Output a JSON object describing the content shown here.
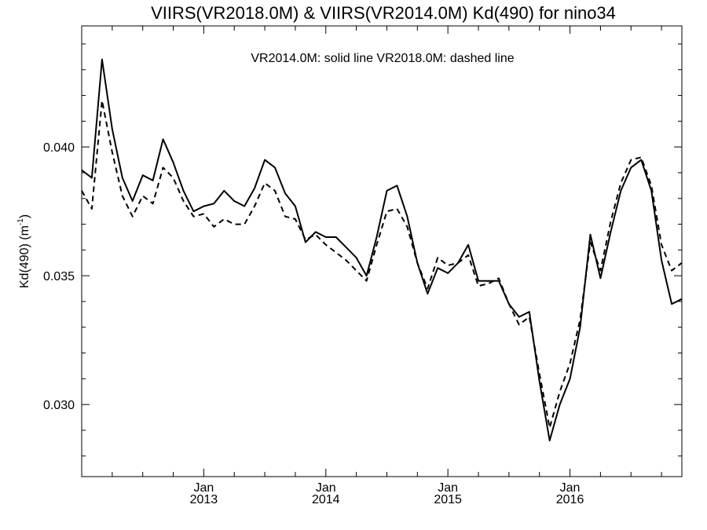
{
  "chart_data": {
    "type": "line",
    "title": "VIIRS(VR2018.0M) & VIIRS(VR2014.0M)  Kd(490) for nino34",
    "annotation": "VR2014.0M: solid line   VR2018.0M: dashed line",
    "ylabel": "Kd(490) (m",
    "ylabel_sup": "-1",
    "ylabel_end": ")",
    "xlim": [
      "2012-01",
      "2016-12"
    ],
    "ylim": [
      0.0272,
      0.0447
    ],
    "yticks": [
      {
        "value": 0.03,
        "label": "0.030"
      },
      {
        "value": 0.035,
        "label": "0.035"
      },
      {
        "value": 0.04,
        "label": "0.040"
      }
    ],
    "xticks": [
      {
        "date": "2013-01",
        "month": "Jan",
        "year": "2013"
      },
      {
        "date": "2014-01",
        "month": "Jan",
        "year": "2014"
      },
      {
        "date": "2015-01",
        "month": "Jan",
        "year": "2015"
      },
      {
        "date": "2016-01",
        "month": "Jan",
        "year": "2016"
      }
    ],
    "grid": false,
    "series": [
      {
        "style": "solid",
        "x": [
          "2012-01",
          "2012-02",
          "2012-03",
          "2012-04",
          "2012-05",
          "2012-06",
          "2012-07",
          "2012-08",
          "2012-09",
          "2012-10",
          "2012-11",
          "2012-12",
          "2013-01",
          "2013-02",
          "2013-03",
          "2013-04",
          "2013-05",
          "2013-06",
          "2013-07",
          "2013-08",
          "2013-09",
          "2013-10",
          "2013-11",
          "2013-12",
          "2014-01",
          "2014-02",
          "2014-03",
          "2014-04",
          "2014-05",
          "2014-06",
          "2014-07",
          "2014-08",
          "2014-09",
          "2014-10",
          "2014-11",
          "2014-12",
          "2015-01",
          "2015-02",
          "2015-03",
          "2015-04",
          "2015-05",
          "2015-06",
          "2015-07",
          "2015-08",
          "2015-09",
          "2015-10",
          "2015-11",
          "2015-12",
          "2016-01",
          "2016-02",
          "2016-03",
          "2016-04",
          "2016-05",
          "2016-06",
          "2016-07",
          "2016-08",
          "2016-09",
          "2016-10",
          "2016-11",
          "2016-12"
        ],
        "values": [
          0.0391,
          0.0388,
          0.0434,
          0.0407,
          0.0388,
          0.0379,
          0.0389,
          0.0387,
          0.0403,
          0.0394,
          0.0383,
          0.0375,
          0.0377,
          0.0378,
          0.0383,
          0.0379,
          0.0377,
          0.0384,
          0.0395,
          0.0392,
          0.0382,
          0.0377,
          0.0363,
          0.0367,
          0.0365,
          0.0365,
          0.0361,
          0.0357,
          0.035,
          0.0365,
          0.0383,
          0.0385,
          0.0373,
          0.0355,
          0.0343,
          0.0353,
          0.0351,
          0.0355,
          0.0362,
          0.0348,
          0.0348,
          0.0348,
          0.0339,
          0.0334,
          0.0336,
          0.0309,
          0.0286,
          0.03,
          0.031,
          0.033,
          0.0366,
          0.0349,
          0.0367,
          0.0383,
          0.0392,
          0.0395,
          0.0383,
          0.0356,
          0.0339,
          0.0341
        ]
      },
      {
        "style": "dashed",
        "x": [
          "2012-01",
          "2012-02",
          "2012-03",
          "2012-04",
          "2012-05",
          "2012-06",
          "2012-07",
          "2012-08",
          "2012-09",
          "2012-10",
          "2012-11",
          "2012-12",
          "2013-01",
          "2013-02",
          "2013-03",
          "2013-04",
          "2013-05",
          "2013-06",
          "2013-07",
          "2013-08",
          "2013-09",
          "2013-10",
          "2013-11",
          "2013-12",
          "2014-01",
          "2014-02",
          "2014-03",
          "2014-04",
          "2014-05",
          "2014-06",
          "2014-07",
          "2014-08",
          "2014-09",
          "2014-10",
          "2014-11",
          "2014-12",
          "2015-01",
          "2015-02",
          "2015-03",
          "2015-04",
          "2015-05",
          "2015-06",
          "2015-07",
          "2015-08",
          "2015-09",
          "2015-10",
          "2015-11",
          "2015-12",
          "2016-01",
          "2016-02",
          "2016-03",
          "2016-04",
          "2016-05",
          "2016-06",
          "2016-07",
          "2016-08",
          "2016-09",
          "2016-10",
          "2016-11",
          "2016-12"
        ],
        "values": [
          0.0383,
          0.0376,
          0.0418,
          0.0398,
          0.0381,
          0.0373,
          0.0381,
          0.0378,
          0.0392,
          0.0388,
          0.0379,
          0.0373,
          0.0374,
          0.0369,
          0.0372,
          0.037,
          0.037,
          0.0377,
          0.0386,
          0.0383,
          0.0373,
          0.0372,
          0.0364,
          0.0366,
          0.0362,
          0.0359,
          0.0356,
          0.0352,
          0.0348,
          0.0362,
          0.0375,
          0.0376,
          0.0369,
          0.0355,
          0.0345,
          0.0357,
          0.0354,
          0.0355,
          0.0358,
          0.0346,
          0.0347,
          0.0349,
          0.0339,
          0.0331,
          0.0334,
          0.0312,
          0.0291,
          0.0305,
          0.0316,
          0.0333,
          0.0363,
          0.0352,
          0.0371,
          0.0386,
          0.0395,
          0.0396,
          0.0385,
          0.0362,
          0.0352,
          0.0355
        ]
      }
    ]
  }
}
